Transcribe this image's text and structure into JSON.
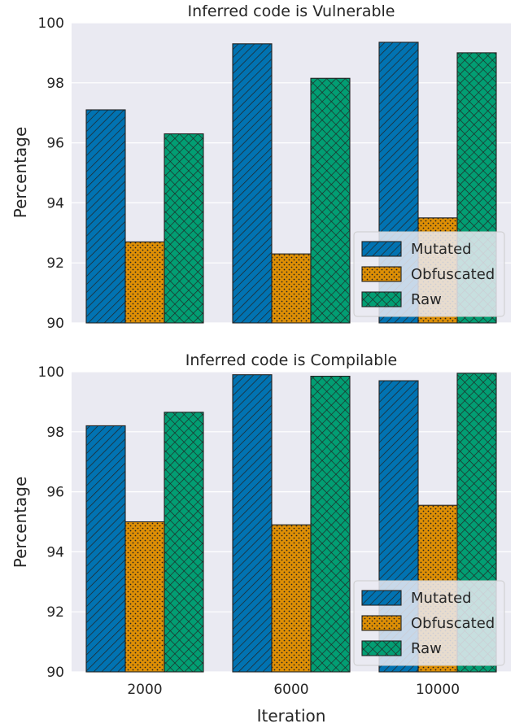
{
  "chart_data": [
    {
      "type": "bar",
      "title": "Inferred code is Vulnerable",
      "xlabel": "",
      "ylabel": "Percentage",
      "categories": [
        "2000",
        "6000",
        "10000"
      ],
      "ylim": [
        90,
        100
      ],
      "yticks": [
        90,
        92,
        94,
        96,
        98,
        100
      ],
      "show_xticklabels": false,
      "series": [
        {
          "name": "Mutated",
          "values": [
            97.1,
            99.3,
            99.35
          ],
          "color": "#0173b2",
          "pattern": "diagonal-hatch"
        },
        {
          "name": "Obfuscated",
          "values": [
            92.7,
            92.3,
            93.5
          ],
          "color": "#de8f05",
          "pattern": "dots"
        },
        {
          "name": "Raw",
          "values": [
            96.3,
            98.15,
            99.0
          ],
          "color": "#029e73",
          "pattern": "cross-hatch"
        }
      ],
      "legend": "bottom-right",
      "grid": true,
      "background": "#eaeaf2"
    },
    {
      "type": "bar",
      "title": "Inferred code is Compilable",
      "xlabel": "Iteration",
      "ylabel": "Percentage",
      "categories": [
        "2000",
        "6000",
        "10000"
      ],
      "ylim": [
        90,
        100
      ],
      "yticks": [
        90,
        92,
        94,
        96,
        98,
        100
      ],
      "show_xticklabels": true,
      "series": [
        {
          "name": "Mutated",
          "values": [
            98.2,
            99.9,
            99.7
          ],
          "color": "#0173b2",
          "pattern": "diagonal-hatch"
        },
        {
          "name": "Obfuscated",
          "values": [
            95.0,
            94.9,
            95.55
          ],
          "color": "#de8f05",
          "pattern": "dots"
        },
        {
          "name": "Raw",
          "values": [
            98.65,
            99.85,
            99.95
          ],
          "color": "#029e73",
          "pattern": "cross-hatch"
        }
      ],
      "legend": "bottom-right",
      "grid": true,
      "background": "#eaeaf2"
    }
  ]
}
